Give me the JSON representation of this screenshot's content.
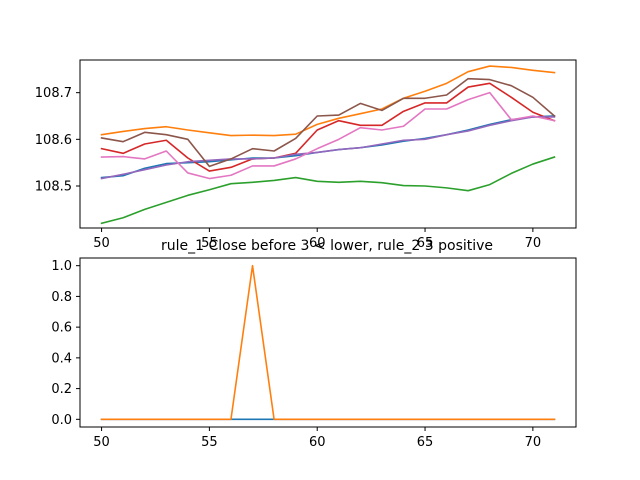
{
  "chart_data": [
    {
      "type": "line",
      "title": "",
      "xlabel": "",
      "ylabel": "",
      "xlim": [
        49,
        72
      ],
      "ylim": [
        108.41,
        108.77
      ],
      "xticks": [
        50,
        55,
        60,
        65,
        70
      ],
      "yticks": [
        108.5,
        108.6,
        108.7
      ],
      "grid": false,
      "x": [
        50,
        51,
        52,
        53,
        54,
        55,
        56,
        57,
        58,
        59,
        60,
        61,
        62,
        63,
        64,
        65,
        66,
        67,
        68,
        69,
        70,
        71
      ],
      "series": [
        {
          "color": "#1f77b4",
          "values": [
            108.518,
            108.522,
            108.538,
            108.548,
            108.55,
            108.552,
            108.556,
            108.56,
            108.56,
            108.565,
            108.572,
            108.578,
            108.582,
            108.588,
            108.596,
            108.602,
            108.61,
            108.62,
            108.632,
            108.642,
            108.648,
            108.65
          ]
        },
        {
          "color": "#ff7f0e",
          "values": [
            108.61,
            108.617,
            108.623,
            108.627,
            108.62,
            108.614,
            108.608,
            108.609,
            108.608,
            108.611,
            108.632,
            108.645,
            108.655,
            108.665,
            108.688,
            108.703,
            108.72,
            108.745,
            108.757,
            108.754,
            108.748,
            108.743
          ]
        },
        {
          "color": "#2ca02c",
          "values": [
            108.42,
            108.432,
            108.45,
            108.465,
            108.48,
            108.492,
            108.505,
            108.508,
            108.512,
            108.518,
            108.51,
            108.508,
            108.51,
            108.507,
            108.501,
            108.5,
            108.496,
            108.49,
            108.503,
            108.527,
            108.547,
            108.562
          ]
        },
        {
          "color": "#d62728",
          "values": [
            108.58,
            108.57,
            108.59,
            108.598,
            108.56,
            108.532,
            108.54,
            108.558,
            108.56,
            108.57,
            108.62,
            108.64,
            108.63,
            108.63,
            108.66,
            108.678,
            108.678,
            108.712,
            108.72,
            108.69,
            108.658,
            108.64
          ]
        },
        {
          "color": "#9467bd",
          "values": [
            108.516,
            108.525,
            108.535,
            108.545,
            108.552,
            108.555,
            108.558,
            108.558,
            108.56,
            108.568,
            108.572,
            108.578,
            108.582,
            108.59,
            108.598,
            108.6,
            108.61,
            108.618,
            108.63,
            108.64,
            108.648,
            108.648
          ]
        },
        {
          "color": "#8c564b",
          "values": [
            108.603,
            108.595,
            108.615,
            108.61,
            108.6,
            108.542,
            108.558,
            108.58,
            108.575,
            108.602,
            108.65,
            108.652,
            108.677,
            108.662,
            108.688,
            108.688,
            108.695,
            108.73,
            108.728,
            108.715,
            108.69,
            108.65
          ]
        },
        {
          "color": "#e377c2",
          "values": [
            108.562,
            108.563,
            108.558,
            108.575,
            108.528,
            108.516,
            108.523,
            108.543,
            108.543,
            108.558,
            108.58,
            108.6,
            108.625,
            108.62,
            108.628,
            108.665,
            108.665,
            108.685,
            108.7,
            108.642,
            108.65,
            108.64
          ]
        }
      ]
    },
    {
      "type": "line",
      "title": "rule_1 Close before 3 < lower, rule_2 3 positive",
      "xlabel": "",
      "ylabel": "",
      "xlim": [
        49,
        72
      ],
      "ylim": [
        -0.05,
        1.05
      ],
      "xticks": [
        50,
        55,
        60,
        65,
        70
      ],
      "yticks": [
        0.0,
        0.2,
        0.4,
        0.6,
        0.8,
        1.0
      ],
      "grid": false,
      "x": [
        50,
        51,
        52,
        53,
        54,
        55,
        56,
        57,
        58,
        59,
        60,
        61,
        62,
        63,
        64,
        65,
        66,
        67,
        68,
        69,
        70,
        71
      ],
      "series": [
        {
          "color": "#1f77b4",
          "values": [
            0,
            0,
            0,
            0,
            0,
            0,
            0,
            0,
            0,
            0,
            0,
            0,
            0,
            0,
            0,
            0,
            0,
            0,
            0,
            0,
            0,
            0
          ]
        },
        {
          "color": "#ff7f0e",
          "values": [
            0,
            0,
            0,
            0,
            0,
            0,
            0,
            1,
            0,
            0,
            0,
            0,
            0,
            0,
            0,
            0,
            0,
            0,
            0,
            0,
            0,
            0
          ]
        }
      ]
    }
  ]
}
